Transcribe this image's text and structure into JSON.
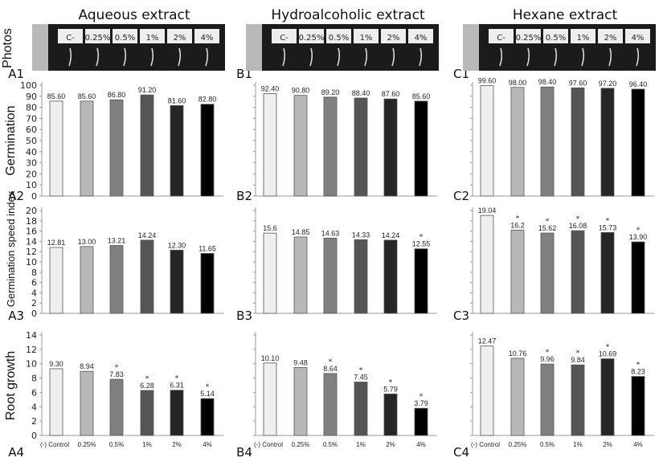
{
  "columns": [
    {
      "title": "Aqueous extract",
      "panels": [
        "A1",
        "A2",
        "A3",
        "A4"
      ]
    },
    {
      "title": "Hydroalcoholic extract",
      "panels": [
        "B1",
        "B2",
        "B3",
        "B4"
      ]
    },
    {
      "title": "Hexane extract",
      "panels": [
        "C1",
        "C2",
        "C3",
        "C4"
      ]
    }
  ],
  "row_labels": [
    "Photos",
    "Germination",
    "Germination speed index",
    "Root growth"
  ],
  "photo_labels": [
    "C-",
    "0.25%",
    "0.5%",
    "1%",
    "2%",
    "4%"
  ],
  "bar_colors": [
    "#efefef",
    "#b8b8b8",
    "#808080",
    "#555555",
    "#262626",
    "#000000"
  ],
  "chart_data": [
    {
      "type": "bar",
      "panel": "A2",
      "ylabel": "Germination",
      "ylim": [
        0,
        100
      ],
      "yticks": [
        0,
        10,
        20,
        30,
        40,
        50,
        60,
        70,
        80,
        90,
        100
      ],
      "categories": [
        "(-) Control",
        "0.25%",
        "0.5%",
        "1%",
        "2%",
        "4%"
      ],
      "values": [
        85.6,
        85.6,
        86.8,
        91.2,
        81.6,
        82.8
      ],
      "labels": [
        "85.60",
        "85.60",
        "86.80",
        "91.20",
        "81.60",
        "82.80"
      ],
      "significant": [
        false,
        false,
        false,
        false,
        false,
        false
      ]
    },
    {
      "type": "bar",
      "panel": "B2",
      "ylim": [
        0,
        100
      ],
      "categories": [
        "(-) Control",
        "0.25%",
        "0.5%",
        "1%",
        "2%",
        "4%"
      ],
      "values": [
        92.4,
        90.8,
        89.2,
        88.4,
        87.6,
        85.6
      ],
      "labels": [
        "92.40",
        "90.80",
        "89.20",
        "88.40",
        "87.60",
        "85.60"
      ],
      "significant": [
        false,
        false,
        false,
        false,
        false,
        false
      ]
    },
    {
      "type": "bar",
      "panel": "C2",
      "ylim": [
        0,
        100
      ],
      "categories": [
        "(-) Control",
        "0.25%",
        "0.5%",
        "1%",
        "2%",
        "4%"
      ],
      "values": [
        99.6,
        98.0,
        98.4,
        97.6,
        97.2,
        96.4
      ],
      "labels": [
        "99.60",
        "98.00",
        "98.40",
        "97.60",
        "97.20",
        "96.40"
      ],
      "significant": [
        false,
        false,
        false,
        false,
        false,
        false
      ]
    },
    {
      "type": "bar",
      "panel": "A3",
      "ylabel": "Germination speed index",
      "ylim": [
        0,
        20
      ],
      "yticks": [
        0,
        2,
        4,
        6,
        8,
        10,
        12,
        14,
        16,
        18,
        20
      ],
      "categories": [
        "(-) Control",
        "0.25%",
        "0.5%",
        "1%",
        "2%",
        "4%"
      ],
      "values": [
        12.81,
        13.0,
        13.21,
        14.24,
        12.3,
        11.65
      ],
      "labels": [
        "12.81",
        "13.00",
        "13.21",
        "14.24",
        "12.30",
        "11.65"
      ],
      "significant": [
        false,
        false,
        false,
        false,
        false,
        false
      ]
    },
    {
      "type": "bar",
      "panel": "B3",
      "ylim": [
        0,
        20
      ],
      "categories": [
        "(-) Control",
        "0.25%",
        "0.5%",
        "1%",
        "2%",
        "4%"
      ],
      "values": [
        15.6,
        14.85,
        14.63,
        14.33,
        14.24,
        12.55
      ],
      "labels": [
        "15.6",
        "14.85",
        "14.63",
        "14.33",
        "14.24",
        "12.55"
      ],
      "significant": [
        false,
        false,
        false,
        false,
        false,
        true
      ]
    },
    {
      "type": "bar",
      "panel": "C3",
      "ylim": [
        0,
        20
      ],
      "categories": [
        "(-) Control",
        "0.25%",
        "0.5%",
        "1%",
        "2%",
        "4%"
      ],
      "values": [
        19.04,
        16.2,
        15.62,
        16.08,
        15.73,
        13.9
      ],
      "labels": [
        "19.04",
        "16.2",
        "15.62",
        "16.08",
        "15.73",
        "13.90"
      ],
      "significant": [
        false,
        true,
        true,
        true,
        true,
        true
      ]
    },
    {
      "type": "bar",
      "panel": "A4",
      "ylabel": "Root growth",
      "ylim": [
        0,
        14
      ],
      "yticks": [
        0,
        2,
        4,
        6,
        8,
        10,
        12,
        14
      ],
      "categories": [
        "(-) Control",
        "0.25%",
        "0.5%",
        "1%",
        "2%",
        "4%"
      ],
      "values": [
        9.3,
        8.94,
        7.83,
        6.28,
        6.31,
        5.14
      ],
      "labels": [
        "9.30",
        "8.94",
        "7.83",
        "6.28",
        "6.31",
        "5.14"
      ],
      "significant": [
        false,
        false,
        true,
        true,
        true,
        true
      ]
    },
    {
      "type": "bar",
      "panel": "B4",
      "ylim": [
        0,
        14
      ],
      "categories": [
        "(-) Control",
        "0.25%",
        "0.5%",
        "1%",
        "2%",
        "4%"
      ],
      "values": [
        10.1,
        9.48,
        8.64,
        7.45,
        5.79,
        3.79
      ],
      "labels": [
        "10.10",
        "9.48",
        "8.64",
        "7.45",
        "5.79",
        "3.79"
      ],
      "significant": [
        false,
        false,
        true,
        true,
        true,
        true
      ]
    },
    {
      "type": "bar",
      "panel": "C4",
      "ylim": [
        0,
        14
      ],
      "categories": [
        "(-) Control",
        "0.25%",
        "0.5%",
        "1%",
        "2%",
        "4%"
      ],
      "values": [
        12.47,
        10.76,
        9.96,
        9.84,
        10.69,
        8.23
      ],
      "labels": [
        "12.47",
        "10.76",
        "9.96",
        "9.84",
        "10.69",
        "8.23"
      ],
      "significant": [
        false,
        false,
        true,
        true,
        true,
        true
      ]
    }
  ]
}
